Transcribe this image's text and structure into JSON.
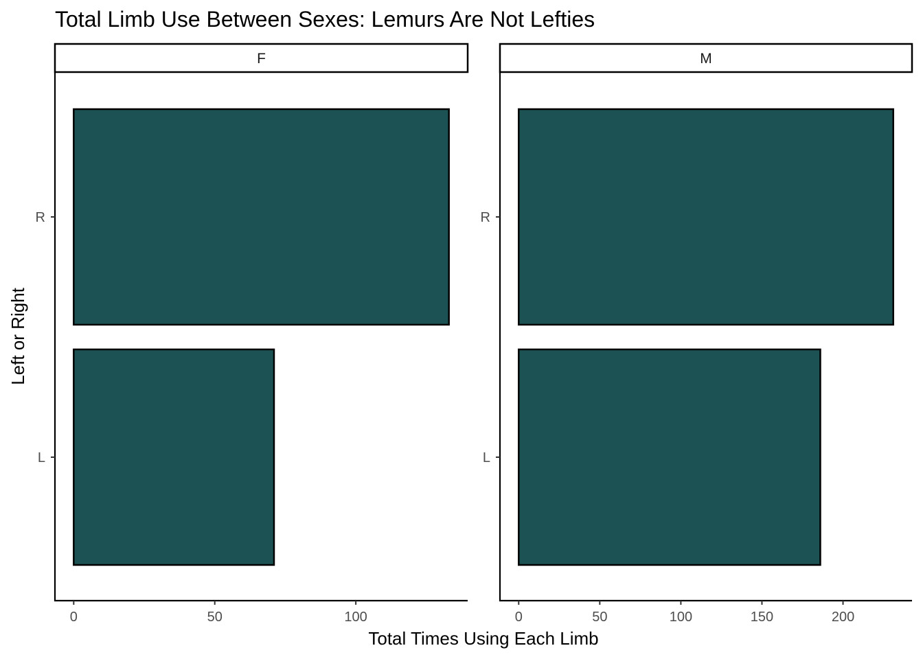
{
  "chart_data": {
    "type": "bar",
    "orientation": "horizontal",
    "title": "Total Limb Use Between Sexes: Lemurs Are Not Lefties",
    "xlabel": "Total Times Using Each Limb",
    "ylabel": "Left or Right",
    "categories": [
      "L",
      "R"
    ],
    "bar_fill": "#1d5254",
    "bar_stroke": "#000000",
    "grid": false,
    "legend": "none",
    "panels": [
      {
        "facet": "F",
        "values": [
          71,
          133
        ],
        "xlim": [
          -6.65,
          139.65
        ],
        "xticks": [
          0,
          50,
          100
        ]
      },
      {
        "facet": "M",
        "values": [
          186,
          231
        ],
        "xlim": [
          -11.55,
          242.55
        ],
        "xticks": [
          0,
          50,
          100,
          150,
          200
        ]
      }
    ]
  }
}
